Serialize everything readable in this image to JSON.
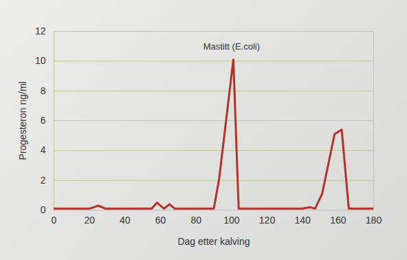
{
  "chart_data": {
    "type": "line",
    "x_label": "Dag etter kalving",
    "y_label": "Progesteron ng/ml",
    "x": [
      0,
      5,
      10,
      15,
      20,
      25,
      29,
      35,
      40,
      45,
      50,
      55,
      58,
      62,
      65,
      68,
      72,
      80,
      86,
      90,
      93,
      101,
      104,
      110,
      120,
      130,
      140,
      144,
      147,
      151,
      158,
      162,
      166,
      170,
      175,
      180
    ],
    "values": [
      0.1,
      0.1,
      0.1,
      0.1,
      0.1,
      0.3,
      0.1,
      0.1,
      0.1,
      0.1,
      0.1,
      0.1,
      0.5,
      0.1,
      0.4,
      0.1,
      0.1,
      0.1,
      0.1,
      0.1,
      2.1,
      10.1,
      0.1,
      0.1,
      0.1,
      0.1,
      0.1,
      0.2,
      0.1,
      1.1,
      5.1,
      5.4,
      0.1,
      0.1,
      0.1,
      0.1
    ],
    "color": "#b3322b",
    "xlim": [
      0,
      180
    ],
    "xticks": [
      0,
      20,
      40,
      60,
      80,
      100,
      120,
      140,
      160,
      180
    ],
    "ylim": [
      0,
      12
    ],
    "yticks": [
      0,
      2,
      4,
      6,
      8,
      10,
      12
    ],
    "grid": true,
    "annotations": [
      {
        "text": "Mastitt (E.coli)",
        "x": 100,
        "y": 10.8
      }
    ]
  }
}
